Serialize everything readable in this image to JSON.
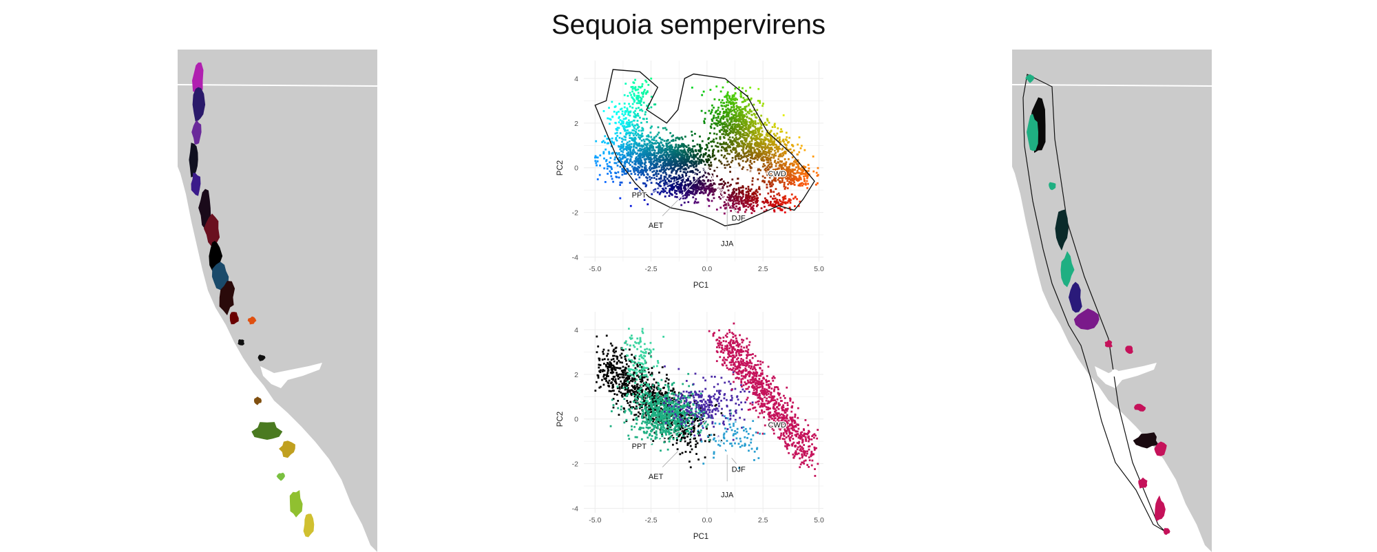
{
  "figure": {
    "title": "Sequoia sempervirens"
  },
  "colors": {
    "land": "#cbcbcb",
    "border": "#ffffff",
    "background": "#ffffff",
    "grid": "#ececec",
    "hull": "#111111",
    "vector": "#ffffff"
  },
  "chart_data": [
    {
      "type": "scatter",
      "title": "",
      "xlabel": "PC1",
      "ylabel": "PC2",
      "xlim": [
        -5.5,
        5.2
      ],
      "ylim": [
        -4.2,
        4.8
      ],
      "xticks": [
        "-5.0",
        "-2.5",
        "0.0",
        "2.5",
        "5.0"
      ],
      "yticks": [
        "4",
        "2",
        "0",
        "-2",
        "-4"
      ],
      "xtick_values": [
        -5,
        -2.5,
        0,
        2.5,
        5
      ],
      "ytick_values": [
        4,
        2,
        0,
        -2,
        -4
      ],
      "grid": true,
      "hull": true,
      "point_coloring": "RGB color wheel by PC1/PC2 position",
      "vectors": [
        {
          "label": "PPT",
          "x": -2.6,
          "y": -1.15
        },
        {
          "label": "AET",
          "x": -1.3,
          "y": -1.45
        },
        {
          "label": "DJF",
          "x": 1.1,
          "y": -1.75
        },
        {
          "label": "JJA",
          "x": 0.9,
          "y": -1.6
        },
        {
          "label": "CWD",
          "x": 2.7,
          "y": -0.2
        }
      ]
    },
    {
      "type": "scatter",
      "title": "",
      "xlabel": "PC1",
      "ylabel": "PC2",
      "xlim": [
        -5.5,
        5.2
      ],
      "ylim": [
        -4.2,
        4.8
      ],
      "xticks": [
        "-5.0",
        "-2.5",
        "0.0",
        "2.5",
        "5.0"
      ],
      "yticks": [
        "4",
        "2",
        "0",
        "-2",
        "-4"
      ],
      "xtick_values": [
        -5,
        -2.5,
        0,
        2.5,
        5
      ],
      "ytick_values": [
        4,
        2,
        0,
        -2,
        -4
      ],
      "grid": true,
      "hull": false,
      "clusters": [
        {
          "color": "#000000",
          "center": [
            -2.6,
            0.6
          ],
          "count": 900
        },
        {
          "color": "#1faf82",
          "center": [
            -1.8,
            0.2
          ],
          "count": 700
        },
        {
          "color": "#3bd4a0",
          "center": [
            -3.1,
            2.6
          ],
          "count": 140
        },
        {
          "color": "#4b2aa6",
          "center": [
            0.0,
            0.6
          ],
          "count": 260
        },
        {
          "color": "#c5125a",
          "center": [
            2.4,
            1.5
          ],
          "count": 900
        },
        {
          "color": "#2a9fd0",
          "center": [
            1.2,
            -0.8
          ],
          "count": 80
        }
      ],
      "vectors": [
        {
          "label": "PPT",
          "x": -2.6,
          "y": -1.15
        },
        {
          "label": "AET",
          "x": -1.3,
          "y": -1.45
        },
        {
          "label": "DJF",
          "x": 1.1,
          "y": -1.75
        },
        {
          "label": "JJA",
          "x": 0.9,
          "y": -1.6
        },
        {
          "label": "CWD",
          "x": 2.7,
          "y": -0.2
        }
      ]
    }
  ]
}
